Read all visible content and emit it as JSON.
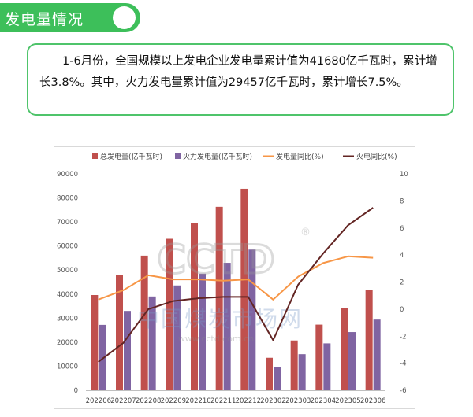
{
  "header": {
    "title": "发电量情况"
  },
  "summary": {
    "text": "1-6月份，全国规模以上发电企业发电量累计值为41680亿千瓦时，累计增长3.8%。其中，火力发电量累计值为29457亿千瓦时，累计增长7.5%。"
  },
  "watermark": {
    "logo_text": "CCTD",
    "registered": "®",
    "cn_text": "中国煤炭市场网",
    "url": "www.cctd.com.cn"
  },
  "colors": {
    "accent": "#3dbf5a",
    "total_bar": "#c0504d",
    "thermal_bar": "#8064a2",
    "total_yoy": "#f79646",
    "thermal_yoy": "#632523"
  },
  "chart_data": {
    "type": "bar",
    "categories": [
      "202206",
      "202207",
      "202208",
      "202209",
      "202210",
      "202211",
      "202212",
      "202302",
      "202303",
      "202304",
      "202305",
      "202306"
    ],
    "series": [
      {
        "name": "总发电量(亿千瓦时)",
        "kind": "bar",
        "axis": "left",
        "color": "#c0504d",
        "values": [
          39600,
          47900,
          56000,
          63000,
          69500,
          76300,
          83800,
          13500,
          20700,
          27300,
          34100,
          41600
        ]
      },
      {
        "name": "火力发电量(亿千瓦时)",
        "kind": "bar",
        "axis": "left",
        "color": "#8064a2",
        "values": [
          27200,
          33000,
          39000,
          43600,
          48500,
          53000,
          58500,
          9800,
          15000,
          19500,
          24200,
          29400
        ]
      },
      {
        "name": "发电量同比(%)",
        "kind": "line",
        "axis": "right",
        "color": "#f79646",
        "values": [
          0.7,
          1.4,
          2.5,
          2.2,
          2.2,
          2.1,
          2.2,
          0.7,
          2.4,
          3.4,
          3.9,
          3.8
        ]
      },
      {
        "name": "火电同比(%)",
        "kind": "line",
        "axis": "right",
        "color": "#632523",
        "values": [
          -3.9,
          -2.5,
          0.0,
          0.6,
          0.8,
          0.9,
          0.9,
          -2.3,
          1.8,
          4.1,
          6.2,
          7.5
        ]
      }
    ],
    "y_left": {
      "min": 0,
      "max": 90000,
      "ticks": [
        0,
        10000,
        20000,
        30000,
        40000,
        50000,
        60000,
        70000,
        80000,
        90000
      ]
    },
    "y_right": {
      "min": -6,
      "max": 10,
      "ticks": [
        -6,
        -4,
        -2,
        0,
        2,
        4,
        6,
        8,
        10
      ]
    },
    "grid": false,
    "legend_position": "top"
  }
}
